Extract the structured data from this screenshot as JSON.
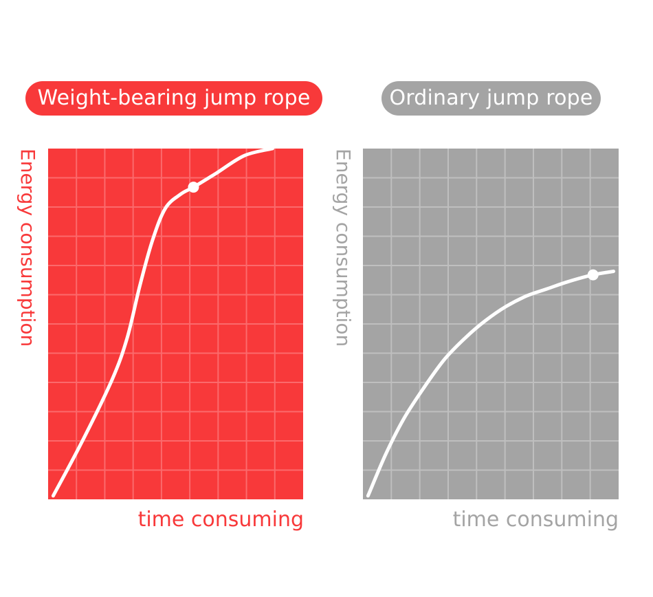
{
  "colors": {
    "accent": "#f8393a",
    "neutral": "#a4a4a4",
    "line": "#ffffff",
    "grid_on_red": "#fb6a6c",
    "grid_on_gray": "#bfbfbf"
  },
  "chart_data": [
    {
      "type": "line",
      "title": "Weight-bearing jump rope",
      "xlabel": "time consuming",
      "ylabel": "Energy consumption",
      "xlim": [
        0,
        100
      ],
      "ylim": [
        0,
        100
      ],
      "grid": true,
      "grid_columns": 9,
      "grid_rows": 12,
      "series": [
        {
          "name": "Weight-bearing jump rope",
          "x": [
            2,
            13,
            25,
            31,
            36,
            41,
            46,
            52,
            57,
            66,
            77,
            88
          ],
          "y": [
            1,
            16,
            34,
            46,
            61,
            74,
            83,
            87,
            89,
            93,
            98,
            100
          ],
          "marker": {
            "x": 57,
            "y": 89
          }
        }
      ]
    },
    {
      "type": "line",
      "title": "Ordinary jump rope",
      "xlabel": "time consuming",
      "ylabel": "Energy consumption",
      "xlim": [
        0,
        100
      ],
      "ylim": [
        0,
        100
      ],
      "grid": true,
      "grid_columns": 9,
      "grid_rows": 12,
      "series": [
        {
          "name": "Ordinary jump rope",
          "x": [
            2,
            9,
            16,
            24,
            32,
            40,
            48,
            56,
            64,
            72,
            80,
            90,
            98
          ],
          "y": [
            1,
            13,
            23,
            32,
            40,
            46,
            51,
            55,
            58,
            60,
            62,
            64,
            65
          ],
          "marker": {
            "x": 90,
            "y": 64
          }
        }
      ]
    }
  ]
}
